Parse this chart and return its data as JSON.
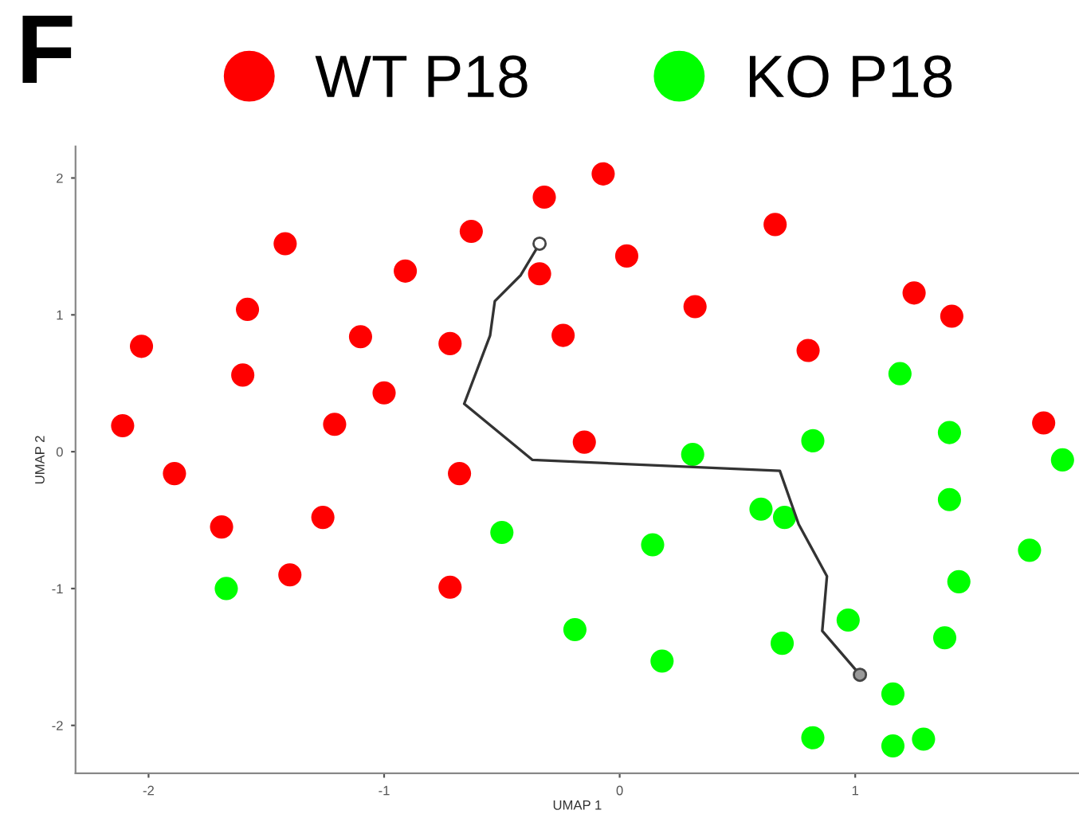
{
  "chart_data": {
    "type": "scatter",
    "title": "F",
    "xlabel": "UMAP 1",
    "ylabel": "UMAP 2",
    "xlim": [
      -2.31,
      1.95
    ],
    "ylim": [
      -2.35,
      2.23
    ],
    "xticks": [
      -2,
      -1,
      0,
      1
    ],
    "yticks": [
      -2,
      -1,
      0,
      1,
      2
    ],
    "grid": false,
    "legend": "top",
    "marker": "circle",
    "series": [
      {
        "name": "WT P18",
        "color": "#ff0000",
        "x": [
          -2.11,
          -2.03,
          -1.89,
          -1.69,
          -1.6,
          -1.58,
          -1.42,
          -1.4,
          -1.26,
          -1.21,
          -1.1,
          -1.0,
          -0.91,
          -0.72,
          -0.72,
          -0.68,
          -0.63,
          -0.32,
          -0.34,
          -0.24,
          -0.15,
          -0.07,
          0.03,
          0.32,
          0.66,
          0.8,
          1.25,
          1.41,
          1.8
        ],
        "values": [
          0.19,
          0.77,
          -0.16,
          -0.55,
          0.56,
          1.04,
          1.52,
          -0.9,
          -0.48,
          0.2,
          0.84,
          0.43,
          1.32,
          0.79,
          -0.99,
          -0.16,
          1.61,
          1.86,
          1.3,
          0.85,
          0.07,
          2.03,
          1.43,
          1.06,
          1.66,
          0.74,
          1.16,
          0.99,
          0.21
        ]
      },
      {
        "name": "KO P18",
        "color": "#00ff00",
        "x": [
          -1.67,
          -0.5,
          -0.19,
          0.14,
          0.18,
          0.31,
          0.6,
          0.7,
          0.69,
          0.82,
          0.82,
          0.97,
          1.16,
          1.16,
          1.19,
          1.29,
          1.38,
          1.4,
          1.4,
          1.44,
          1.74,
          1.88
        ],
        "values": [
          -1.0,
          -0.59,
          -1.3,
          -0.68,
          -1.53,
          -0.02,
          -0.42,
          -0.48,
          -1.4,
          0.08,
          -2.09,
          -1.23,
          -1.77,
          -2.15,
          0.57,
          -2.1,
          -1.36,
          0.14,
          -0.35,
          -0.95,
          -0.72,
          -0.06
        ]
      },
      {
        "type": "line",
        "color": "#333333",
        "marker": "none",
        "line_style": "solid",
        "x": [
          -0.34,
          -0.42,
          -0.53,
          -0.55,
          -0.66,
          -0.37,
          0.68,
          0.76,
          0.88,
          0.86,
          1.02
        ],
        "values": [
          1.52,
          1.29,
          1.1,
          0.85,
          0.35,
          -0.06,
          -0.14,
          -0.53,
          -0.91,
          -1.31,
          -1.63
        ]
      },
      {
        "type": "scatter",
        "colors": [
          "#ffffff",
          "#999999"
        ],
        "x": [
          -0.34,
          1.02
        ],
        "values": [
          1.52,
          -1.63
        ]
      }
    ]
  }
}
